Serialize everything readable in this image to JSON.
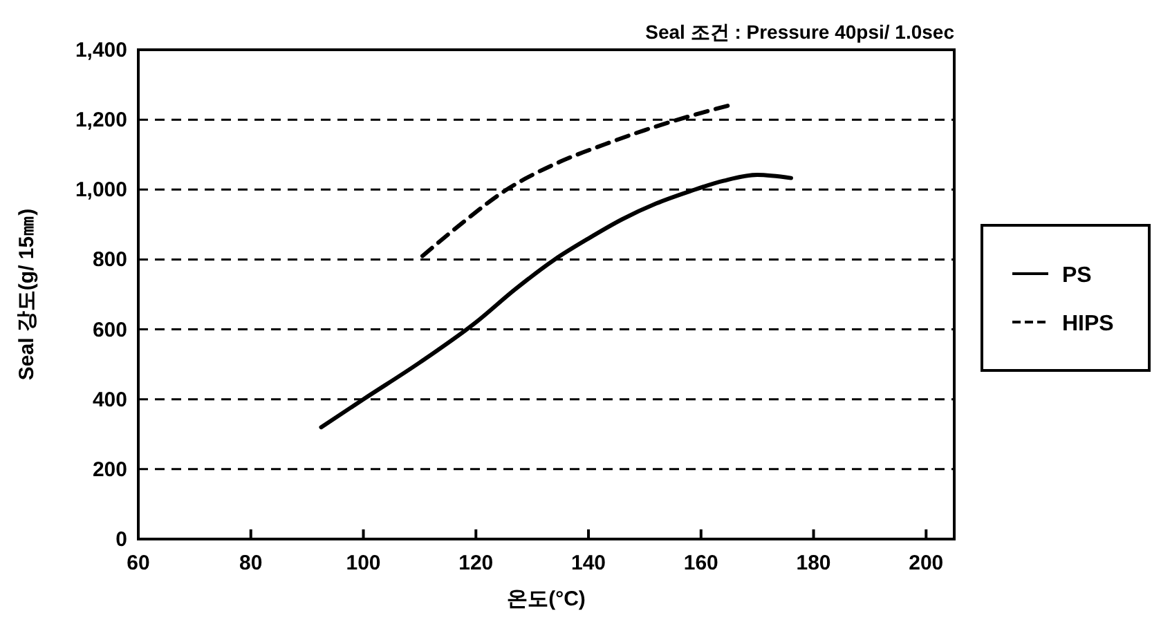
{
  "chart_data": {
    "type": "line",
    "title": "Seal 조건 : Pressure 40psi/  1.0sec",
    "xlabel": "온도(°C)",
    "ylabel": "Seal 강도(g/ 15㎜)",
    "xlim": [
      60,
      205
    ],
    "xticks": [
      60,
      80,
      100,
      120,
      140,
      160,
      180,
      200
    ],
    "ylim": [
      0,
      1400
    ],
    "yticks": [
      0,
      200,
      400,
      600,
      800,
      {
        "value": 1000,
        "label": "1,000"
      },
      {
        "value": 1200,
        "label": "1,200"
      },
      {
        "value": 1400,
        "label": "1,400"
      }
    ],
    "grid": "y",
    "legend": "right",
    "marker": "none",
    "series": [
      {
        "name": "PS",
        "color": "#000000",
        "line_style": "solid",
        "x": [
          92.5,
          100,
          110,
          120,
          127,
          134,
          140,
          146,
          152,
          158,
          164,
          170,
          176
        ],
        "values": [
          320,
          400,
          505,
          620,
          715,
          800,
          860,
          915,
          960,
          995,
          1025,
          1042,
          1033
        ]
      },
      {
        "name": "HIPS",
        "color": "#000000",
        "line_style": "dashed",
        "x": [
          110.5,
          118,
          125,
          135,
          143,
          150,
          158,
          166
        ],
        "values": [
          810,
          910,
          995,
          1080,
          1130,
          1170,
          1210,
          1245
        ]
      }
    ]
  }
}
